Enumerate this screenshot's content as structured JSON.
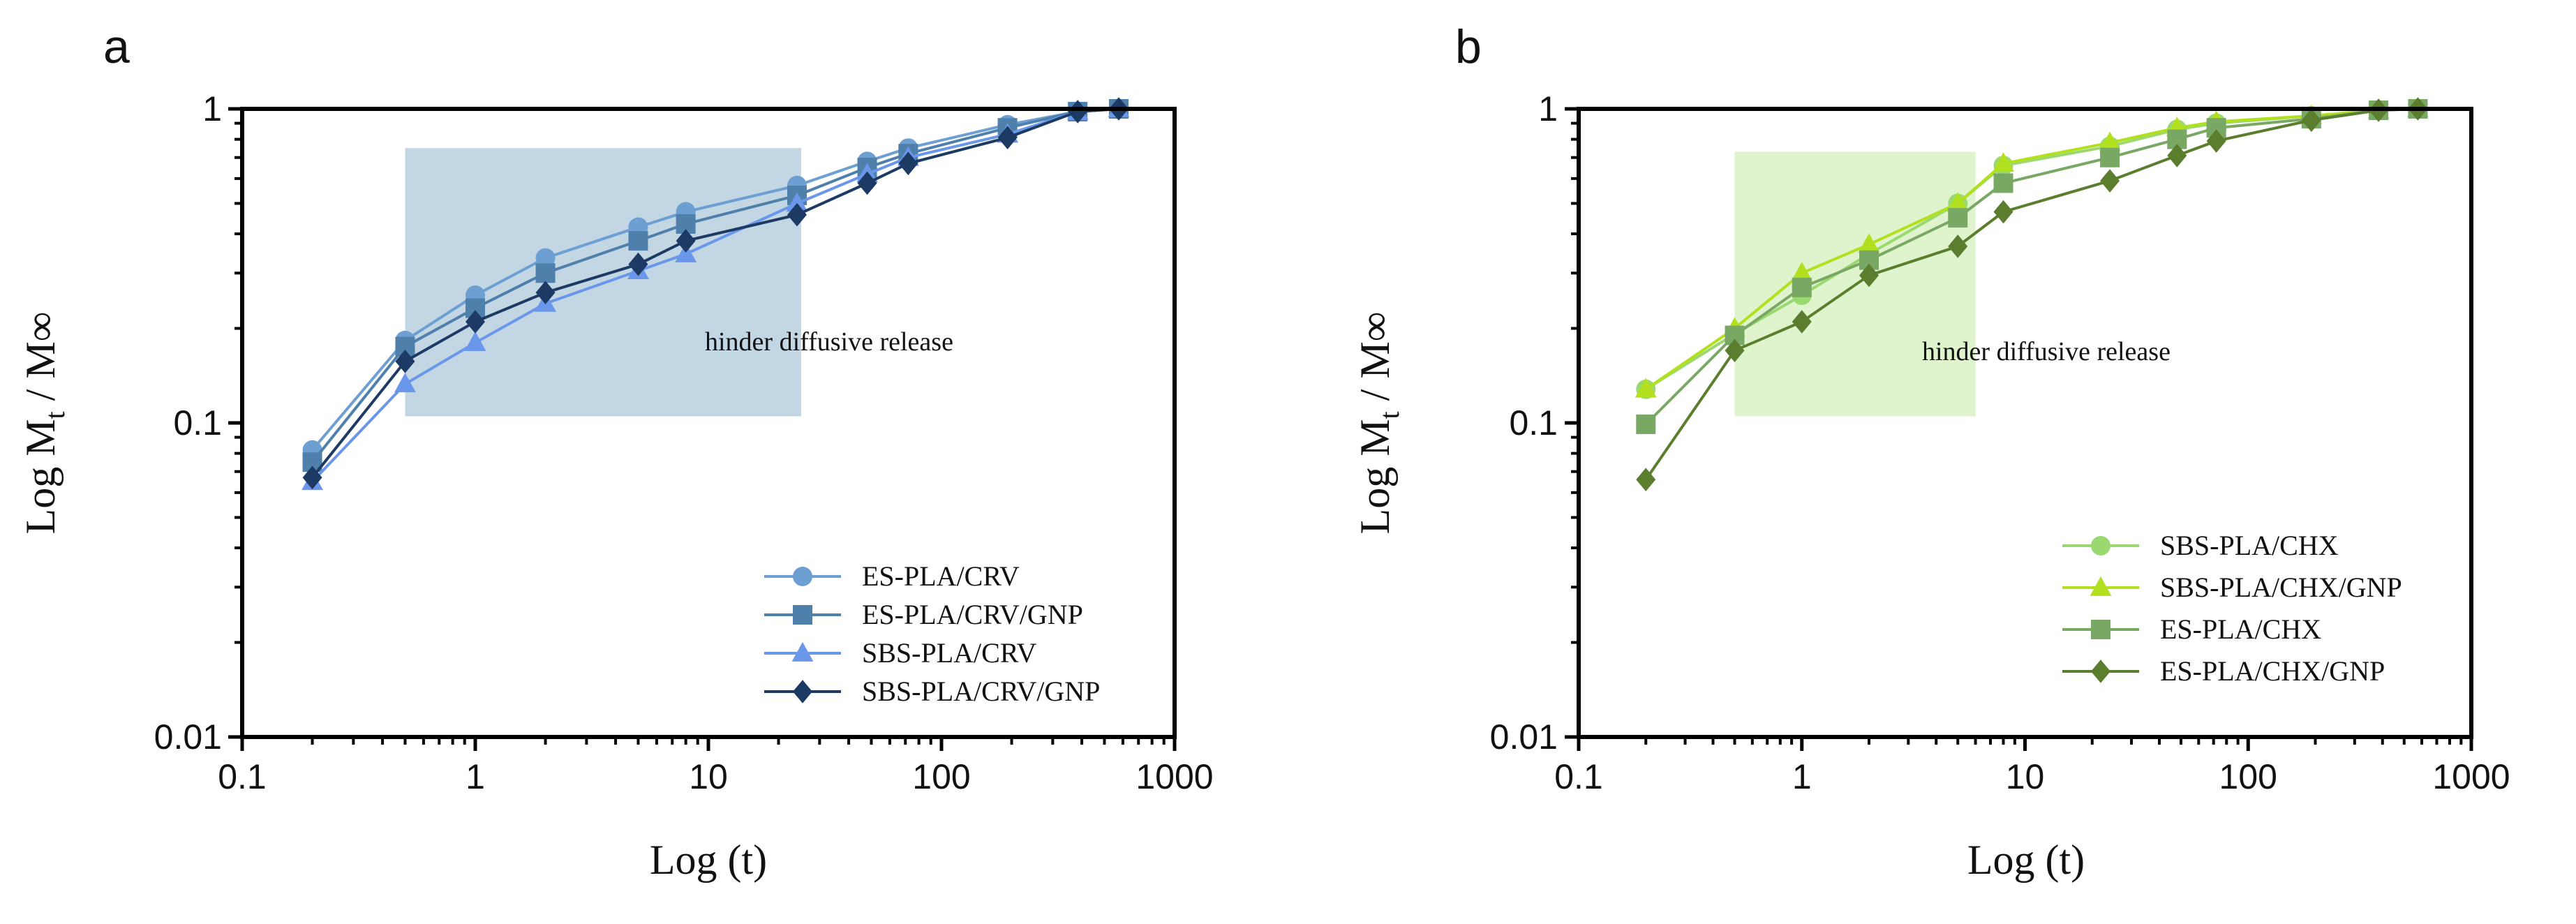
{
  "panels": [
    {
      "letter": "a",
      "annotation": "hinder diffusive release"
    },
    {
      "letter": "b",
      "annotation": "hinder diffusive release"
    }
  ],
  "chart_data": [
    {
      "type": "line",
      "xscale": "log",
      "yscale": "log",
      "xlabel": "Log (t)",
      "ylabel": "Log M_t / M_∞",
      "ylabel_main": "Log M",
      "ylabel_sub": "t",
      "ylabel_tail": " / M∞",
      "xlim": [
        0.1,
        1000
      ],
      "ylim": [
        0.01,
        1
      ],
      "x_ticks": [
        "0.1",
        "1",
        "10",
        "100",
        "1000"
      ],
      "y_ticks": [
        "0.01",
        "0.1",
        "1"
      ],
      "highlight_region": {
        "x": [
          0.5,
          25
        ],
        "y": [
          0.105,
          0.75
        ],
        "color": "#c2d6e4"
      },
      "legend_position": "bottom-right",
      "series": [
        {
          "name": "ES-PLA/CRV",
          "marker": "circle",
          "color": "#6d9fd3",
          "x": [
            0.2,
            0.5,
            1,
            2,
            5,
            8,
            24,
            48,
            72,
            192,
            384,
            576
          ],
          "y": [
            0.082,
            0.183,
            0.255,
            0.335,
            0.42,
            0.47,
            0.57,
            0.68,
            0.75,
            0.89,
            0.98,
            1.0
          ]
        },
        {
          "name": "ES-PLA/CRV/GNP",
          "marker": "square",
          "color": "#4f7fab",
          "x": [
            0.2,
            0.5,
            1,
            2,
            5,
            8,
            24,
            48,
            72,
            192,
            384,
            576
          ],
          "y": [
            0.075,
            0.175,
            0.232,
            0.3,
            0.38,
            0.43,
            0.53,
            0.65,
            0.72,
            0.87,
            0.98,
            1.0
          ]
        },
        {
          "name": "SBS-PLA/CRV",
          "marker": "triangle",
          "color": "#6b97ea",
          "x": [
            0.2,
            0.5,
            1,
            2,
            5,
            8,
            24,
            48,
            72,
            192,
            384,
            576
          ],
          "y": [
            0.065,
            0.133,
            0.18,
            0.24,
            0.305,
            0.345,
            0.5,
            0.62,
            0.7,
            0.83,
            0.98,
            1.0
          ]
        },
        {
          "name": "SBS-PLA/CRV/GNP",
          "marker": "diamond",
          "color": "#1c3a63",
          "x": [
            0.2,
            0.5,
            1,
            2,
            5,
            8,
            24,
            48,
            72,
            192,
            384,
            576
          ],
          "y": [
            0.067,
            0.157,
            0.21,
            0.26,
            0.32,
            0.38,
            0.46,
            0.58,
            0.67,
            0.81,
            0.98,
            1.0
          ]
        }
      ]
    },
    {
      "type": "line",
      "xscale": "log",
      "yscale": "log",
      "xlabel": "Log (t)",
      "ylabel": "Log M_t / M_∞",
      "ylabel_main": "Log M",
      "ylabel_sub": "t",
      "ylabel_tail": " / M∞",
      "xlim": [
        0.1,
        1000
      ],
      "ylim": [
        0.01,
        1
      ],
      "x_ticks": [
        "0.1",
        "1",
        "10",
        "100",
        "1000"
      ],
      "y_ticks": [
        "0.01",
        "0.1",
        "1"
      ],
      "highlight_region": {
        "x": [
          0.5,
          6
        ],
        "y": [
          0.105,
          0.73
        ],
        "color": "#dff3cd"
      },
      "legend_position": "bottom-right",
      "series": [
        {
          "name": "SBS-PLA/CHX",
          "marker": "circle",
          "color": "#9ad96f",
          "x": [
            0.2,
            0.5,
            1,
            2,
            5,
            8,
            24,
            48,
            72,
            192,
            384,
            576
          ],
          "y": [
            0.128,
            0.192,
            0.255,
            0.345,
            0.5,
            0.66,
            0.76,
            0.86,
            0.9,
            0.95,
            0.99,
            1.0
          ]
        },
        {
          "name": "SBS-PLA/CHX/GNP",
          "marker": "triangle",
          "color": "#b3e01e",
          "x": [
            0.2,
            0.5,
            1,
            2,
            5,
            8,
            24,
            48,
            72,
            192,
            384,
            576
          ],
          "y": [
            0.128,
            0.2,
            0.3,
            0.37,
            0.5,
            0.67,
            0.78,
            0.87,
            0.91,
            0.95,
            0.99,
            1.0
          ]
        },
        {
          "name": "ES-PLA/CHX",
          "marker": "square",
          "color": "#79a864",
          "x": [
            0.2,
            0.5,
            1,
            2,
            5,
            8,
            24,
            48,
            72,
            192,
            384,
            576
          ],
          "y": [
            0.099,
            0.19,
            0.27,
            0.33,
            0.45,
            0.58,
            0.7,
            0.8,
            0.87,
            0.93,
            0.99,
            1.0
          ]
        },
        {
          "name": "ES-PLA/CHX/GNP",
          "marker": "diamond",
          "color": "#5b7e2e",
          "x": [
            0.2,
            0.5,
            1,
            2,
            5,
            8,
            24,
            48,
            72,
            192,
            384,
            576
          ],
          "y": [
            0.066,
            0.17,
            0.21,
            0.295,
            0.365,
            0.47,
            0.59,
            0.71,
            0.79,
            0.92,
            0.99,
            1.0
          ]
        }
      ]
    }
  ]
}
